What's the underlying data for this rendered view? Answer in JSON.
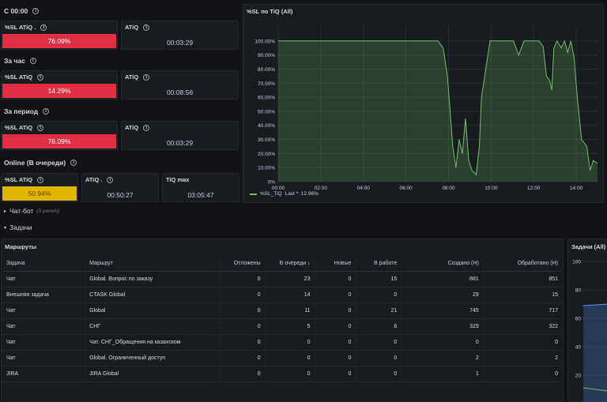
{
  "groups": [
    {
      "title": "С 00:00",
      "sl_label": "%SL ATiQ .",
      "sl_value": "76.09%",
      "atiq_label": "ATiQ",
      "atiq_value": "00:03:29"
    },
    {
      "title": "За час",
      "sl_label": "%SL ATiQ",
      "sl_value": "14.29%",
      "atiq_label": "ATiQ",
      "atiq_value": "00:08:56"
    },
    {
      "title": "За период",
      "sl_label": "%SL ATiQ",
      "sl_value": "76.09%",
      "atiq_label": "ATiQ",
      "atiq_value": "00:03:29"
    }
  ],
  "online": {
    "title": "Online (В очереди)",
    "sl_label": "%SL ATiQ",
    "sl_value": "50.94%",
    "atiq_label": "ATiQ .",
    "atiq_value": "00:50:27",
    "tiqmax_label": "TiQ max",
    "tiqmax_value": "03:05:47"
  },
  "sections": {
    "chatbot": {
      "label": "Чат-бот",
      "note": "(3 panels)"
    },
    "tasks": {
      "label": "Задачи"
    }
  },
  "chart_panel": {
    "title": "%SL по TiQ (All)",
    "legend_name": "%SL_TiQ",
    "legend_last": "Last *: 12.96%"
  },
  "chart_data": {
    "type": "area",
    "title": "%SL по TiQ (All)",
    "y_ticks": [
      "0%",
      "10.00%",
      "20.00%",
      "30.00%",
      "40.00%",
      "50.00%",
      "60.00%",
      "70.00%",
      "80.00%",
      "90.00%",
      "100.00%"
    ],
    "x_ticks": [
      "00:00",
      "02:00",
      "04:00",
      "06:00",
      "08:00",
      "10:00",
      "12:00",
      "14:00"
    ],
    "ylim": [
      0,
      110
    ],
    "xlim": [
      0,
      15.0
    ],
    "series": [
      {
        "name": "%SL_TiQ",
        "color": "#73bf69",
        "points": [
          [
            0,
            100
          ],
          [
            7.5,
            100
          ],
          [
            7.75,
            95
          ],
          [
            7.95,
            75
          ],
          [
            8.2,
            25
          ],
          [
            8.35,
            10
          ],
          [
            8.5,
            30
          ],
          [
            8.65,
            20
          ],
          [
            8.8,
            45
          ],
          [
            8.95,
            15
          ],
          [
            9.1,
            8
          ],
          [
            9.3,
            5
          ],
          [
            9.45,
            25
          ],
          [
            9.55,
            60
          ],
          [
            9.75,
            80
          ],
          [
            9.95,
            100
          ],
          [
            10.55,
            100
          ],
          [
            10.75,
            100
          ],
          [
            11.05,
            100
          ],
          [
            11.3,
            90
          ],
          [
            11.55,
            100
          ],
          [
            11.75,
            100
          ],
          [
            12.0,
            100
          ],
          [
            12.25,
            100
          ],
          [
            12.45,
            96
          ],
          [
            12.6,
            75
          ],
          [
            12.75,
            72
          ],
          [
            12.85,
            65
          ],
          [
            12.95,
            95
          ],
          [
            13.1,
            100
          ],
          [
            13.3,
            95
          ],
          [
            13.45,
            100
          ],
          [
            13.6,
            92
          ],
          [
            13.75,
            100
          ],
          [
            13.9,
            88
          ],
          [
            14.05,
            60
          ],
          [
            14.25,
            30
          ],
          [
            14.5,
            25
          ],
          [
            14.65,
            8
          ],
          [
            14.8,
            15
          ],
          [
            15.0,
            13
          ]
        ]
      }
    ]
  },
  "table_panel": {
    "title": "Маршруты",
    "columns": [
      "Задача",
      "Маршрут",
      "Отложены",
      "В очереди ↓",
      "Новые",
      "В работе",
      "Создано (Н)",
      "Обработано (Н)"
    ],
    "rows": [
      [
        "Чат",
        "Global. Вопрос по заказу",
        "0",
        "23",
        "0",
        "15",
        "881",
        "851"
      ],
      [
        "Внешняя задача",
        "CTASK Global",
        "0",
        "14",
        "0",
        "0",
        "29",
        "15"
      ],
      [
        "Чат",
        "Global",
        "0",
        "11",
        "0",
        "21",
        "745",
        "717"
      ],
      [
        "Чат",
        "СНГ",
        "0",
        "5",
        "0",
        "6",
        "329",
        "322"
      ],
      [
        "Чат",
        "Чат. СНГ_Обращения на казахском",
        "0",
        "0",
        "0",
        "0",
        "0",
        "0"
      ],
      [
        "Чат",
        "Global. Ограниченный доступ",
        "0",
        "0",
        "0",
        "0",
        "2",
        "2"
      ],
      [
        "JIRA",
        "JIRA Global",
        "0",
        "0",
        "0",
        "0",
        "1",
        "0"
      ]
    ]
  },
  "side_panel": {
    "title": "Задачи (All)",
    "y_ticks": [
      "100",
      "80",
      "60",
      "40",
      "20"
    ]
  }
}
